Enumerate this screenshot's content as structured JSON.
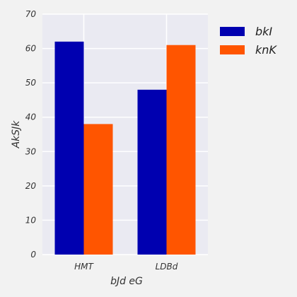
{
  "chart_data": {
    "type": "bar",
    "categories": [
      "HMT",
      "LDBd"
    ],
    "series": [
      {
        "name": "bkI",
        "values": [
          62,
          48
        ],
        "color": "#0000b0"
      },
      {
        "name": "knK",
        "values": [
          38,
          61
        ],
        "color": "#ff5500"
      }
    ],
    "xlabel": "bJd eG",
    "ylabel": "AkSJk",
    "ylim": [
      0,
      70
    ],
    "yticks": [
      0,
      10,
      20,
      30,
      40,
      50,
      60,
      70
    ],
    "grid": true,
    "legend": "upper-right-outside",
    "plot_background": "#eaeaf2",
    "page_background": "#f2f2f2"
  }
}
